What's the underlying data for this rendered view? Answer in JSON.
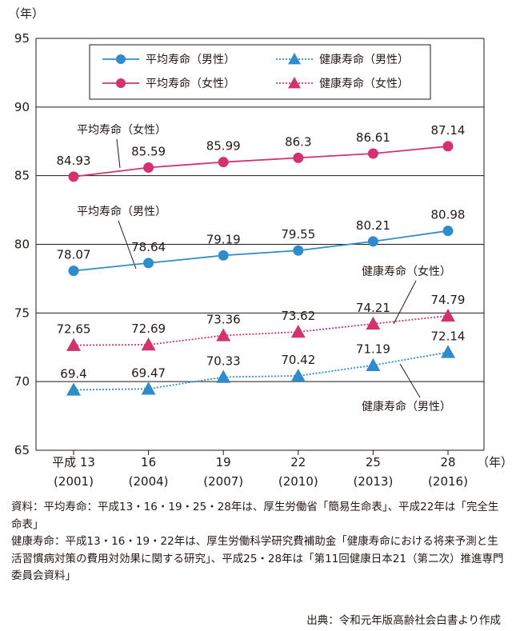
{
  "chart_data": {
    "type": "line",
    "y_unit_label": "（年）",
    "x_unit_label": "（年）",
    "ylim": [
      65,
      95
    ],
    "yticks": [
      65,
      70,
      75,
      80,
      85,
      90,
      95
    ],
    "grid": "horizontal",
    "legend_position": "top",
    "categories": [
      {
        "era": "平成 13",
        "year": "(2001)"
      },
      {
        "era": "16",
        "year": "(2004)"
      },
      {
        "era": "19",
        "year": "(2007)"
      },
      {
        "era": "22",
        "year": "(2010)"
      },
      {
        "era": "25",
        "year": "(2013)"
      },
      {
        "era": "28",
        "year": "(2016)"
      }
    ],
    "series": [
      {
        "name": "平均寿命（男性）",
        "color": "#2f8ccc",
        "marker": "circle",
        "line": "solid",
        "values": [
          78.07,
          78.64,
          79.19,
          79.55,
          80.21,
          80.98
        ],
        "labels": [
          "78.07",
          "78.64",
          "79.19",
          "79.55",
          "80.21",
          "80.98"
        ]
      },
      {
        "name": "健康寿命（男性）",
        "color": "#2f8ccc",
        "marker": "triangle",
        "line": "dotted",
        "values": [
          69.4,
          69.47,
          70.33,
          70.42,
          71.19,
          72.14
        ],
        "labels": [
          "69.4",
          "69.47",
          "70.33",
          "70.42",
          "71.19",
          "72.14"
        ]
      },
      {
        "name": "平均寿命（女性）",
        "color": "#d2326e",
        "marker": "circle",
        "line": "solid",
        "values": [
          84.93,
          85.59,
          85.99,
          86.3,
          86.61,
          87.14
        ],
        "labels": [
          "84.93",
          "85.59",
          "85.99",
          "86.3",
          "86.61",
          "87.14"
        ]
      },
      {
        "name": "健康寿命（女性）",
        "color": "#d2326e",
        "marker": "triangle",
        "line": "dotted",
        "values": [
          72.65,
          72.69,
          73.36,
          73.62,
          74.21,
          74.79
        ],
        "labels": [
          "72.65",
          "72.69",
          "73.36",
          "73.62",
          "74.21",
          "74.79"
        ]
      }
    ],
    "annotations": [
      {
        "text": "平均寿命（女性）",
        "series": "平均寿命（女性）"
      },
      {
        "text": "平均寿命（男性）",
        "series": "平均寿命（男性）"
      },
      {
        "text": "健康寿命（女性）",
        "series": "健康寿命（女性）"
      },
      {
        "text": "健康寿命（男性）",
        "series": "健康寿命（男性）"
      }
    ]
  },
  "notes": {
    "line1": "資料：平均寿命：平成13・16・19・25・28年は、厚生労働省「簡易生命表」、平成22年は「完全生命表」",
    "line2": "健康寿命：平成13・16・19・22年は、厚生労働科学研究費補助金「健康寿命における将来予測と生活習慣病対策の費用対効果に関する研究」、平成25・28年は「第11回健康日本21（第二次）推進専門委員会資料」",
    "source": "出典：令和元年版高齢社会白書より作成"
  }
}
